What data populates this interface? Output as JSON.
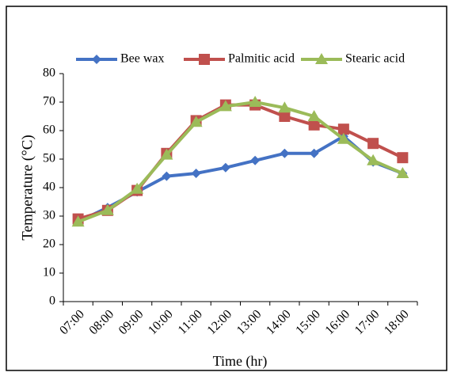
{
  "chart_data": {
    "type": "line",
    "categories": [
      "07:00",
      "08:00",
      "09:00",
      "10:00",
      "11:00",
      "12:00",
      "13:00",
      "14:00",
      "15:00",
      "16:00",
      "17:00",
      "18:00"
    ],
    "series": [
      {
        "name": "Bee wax",
        "color": "#4472c4",
        "marker": "diamond",
        "values": [
          28,
          33,
          38.5,
          44,
          45,
          47,
          49.5,
          52,
          52,
          58,
          49,
          45
        ]
      },
      {
        "name": "Palmitic acid",
        "color": "#c0504d",
        "marker": "square",
        "values": [
          29,
          32,
          39,
          52,
          63.5,
          69,
          69,
          65,
          62,
          60.5,
          55.5,
          50.5
        ]
      },
      {
        "name": "Stearic acid",
        "color": "#9bbb59",
        "marker": "triangle",
        "values": [
          28,
          32,
          39.5,
          51.5,
          63,
          68.5,
          70,
          68,
          65,
          57,
          49.5,
          45
        ]
      }
    ],
    "xlabel": "Time (hr)",
    "ylabel": "Temperature (°C)",
    "ylim": [
      0,
      80
    ],
    "yticks": [
      0,
      10,
      20,
      30,
      40,
      50,
      60,
      70,
      80
    ],
    "grid": false,
    "legend": "top"
  }
}
